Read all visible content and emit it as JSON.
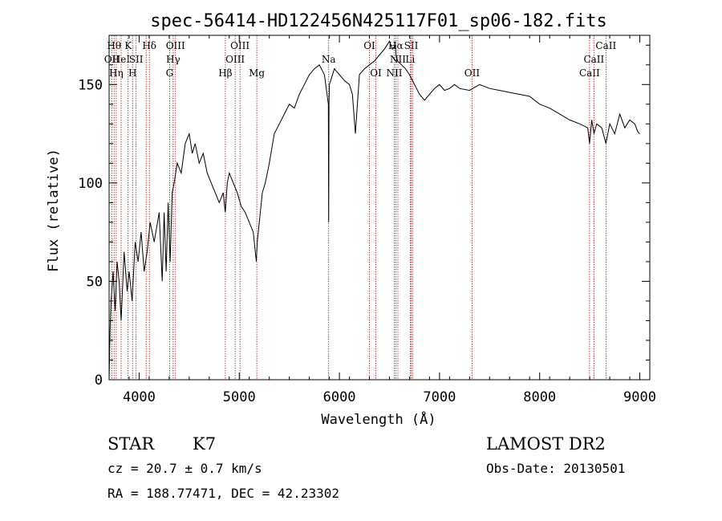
{
  "chart_data": {
    "type": "line",
    "title": "spec-56414-HD122456N425117F01_sp06-182.fits",
    "xlabel": "Wavelength (Å)",
    "ylabel": "Flux (relative)",
    "xlim": [
      3700,
      9100
    ],
    "ylim": [
      0,
      175
    ],
    "xticks": [
      4000,
      5000,
      6000,
      7000,
      8000,
      9000
    ],
    "yticks": [
      0,
      50,
      100,
      150
    ],
    "grid": false,
    "series": [
      {
        "x": [
          3700,
          3710,
          3720,
          3740,
          3760,
          3780,
          3800,
          3820,
          3850,
          3880,
          3900,
          3930,
          3960,
          3990,
          4020,
          4050,
          4080,
          4110,
          4150,
          4200,
          4230,
          4250,
          4270,
          4290,
          4310,
          4330,
          4350,
          4380,
          4420,
          4460,
          4500,
          4530,
          4560,
          4600,
          4640,
          4680,
          4720,
          4760,
          4800,
          4840,
          4860,
          4880,
          4900,
          4940,
          4980,
          5020,
          5060,
          5100,
          5140,
          5170,
          5180,
          5200,
          5230,
          5260,
          5300,
          5350,
          5400,
          5450,
          5500,
          5550,
          5600,
          5650,
          5700,
          5750,
          5800,
          5850,
          5890,
          5893,
          5896,
          5900,
          5950,
          6000,
          6050,
          6100,
          6130,
          6160,
          6200,
          6250,
          6300,
          6350,
          6400,
          6450,
          6500,
          6530,
          6560,
          6565,
          6580,
          6620,
          6660,
          6700,
          6750,
          6800,
          6850,
          6900,
          6950,
          7000,
          7050,
          7100,
          7150,
          7200,
          7300,
          7400,
          7500,
          7600,
          7700,
          7800,
          7900,
          8000,
          8100,
          8200,
          8300,
          8400,
          8480,
          8498,
          8520,
          8542,
          8570,
          8620,
          8662,
          8700,
          8750,
          8800,
          8850,
          8900,
          8950,
          8980,
          9000
        ],
        "y": [
          0,
          25,
          40,
          55,
          35,
          60,
          50,
          30,
          65,
          45,
          55,
          40,
          70,
          60,
          75,
          55,
          65,
          80,
          70,
          85,
          50,
          85,
          55,
          90,
          60,
          95,
          100,
          110,
          105,
          120,
          125,
          115,
          120,
          110,
          115,
          105,
          100,
          95,
          90,
          95,
          85,
          100,
          105,
          100,
          95,
          88,
          85,
          80,
          75,
          60,
          70,
          80,
          95,
          100,
          110,
          125,
          130,
          135,
          140,
          138,
          145,
          150,
          155,
          158,
          160,
          155,
          140,
          80,
          140,
          150,
          158,
          155,
          152,
          150,
          145,
          125,
          155,
          158,
          160,
          162,
          165,
          168,
          172,
          168,
          170,
          165,
          162,
          160,
          158,
          155,
          150,
          145,
          142,
          145,
          148,
          150,
          147,
          148,
          150,
          148,
          147,
          150,
          148,
          147,
          146,
          145,
          144,
          140,
          138,
          135,
          132,
          130,
          128,
          120,
          132,
          125,
          130,
          128,
          120,
          130,
          125,
          135,
          128,
          132,
          130,
          126,
          125
        ]
      }
    ],
    "line_markers": [
      {
        "x": 3727,
        "label": "OII",
        "row": 2
      },
      {
        "x": 3750,
        "label": "Hθ",
        "row": 1
      },
      {
        "x": 3771,
        "label": "Hη",
        "row": 3
      },
      {
        "x": 3820,
        "label": "HeI",
        "row": 2
      },
      {
        "x": 3890,
        "label": "K",
        "row": 1
      },
      {
        "x": 3934,
        "label": "H",
        "row": 3
      },
      {
        "x": 3970,
        "label": "SII",
        "row": 2
      },
      {
        "x": 4102,
        "label": "Hδ",
        "row": 1
      },
      {
        "x": 4070,
        "label": "",
        "row": 0
      },
      {
        "x": 4304,
        "label": "G",
        "row": 3
      },
      {
        "x": 4340,
        "label": "Hγ",
        "row": 2
      },
      {
        "x": 4363,
        "label": "OIII",
        "row": 1
      },
      {
        "x": 4861,
        "label": "Hβ",
        "row": 3
      },
      {
        "x": 4959,
        "label": "OIII",
        "row": 2
      },
      {
        "x": 5007,
        "label": "OIII",
        "row": 1
      },
      {
        "x": 5175,
        "label": "Mg",
        "row": 3
      },
      {
        "x": 5893,
        "label": "Na",
        "row": 2
      },
      {
        "x": 6300,
        "label": "OI",
        "row": 1
      },
      {
        "x": 6364,
        "label": "OI",
        "row": 3
      },
      {
        "x": 6548,
        "label": "NII",
        "row": 3
      },
      {
        "x": 6563,
        "label": "Hα",
        "row": 1
      },
      {
        "x": 6584,
        "label": "NII",
        "row": 2
      },
      {
        "x": 6707,
        "label": "Li",
        "row": 2
      },
      {
        "x": 6717,
        "label": "SII",
        "row": 1
      },
      {
        "x": 6731,
        "label": "",
        "row": 0
      },
      {
        "x": 7325,
        "label": "OII",
        "row": 3
      },
      {
        "x": 8498,
        "label": "CaII",
        "row": 3
      },
      {
        "x": 8542,
        "label": "CaII",
        "row": 2
      },
      {
        "x": 8662,
        "label": "CaII",
        "row": 1
      }
    ]
  },
  "info": {
    "object_type": "STAR",
    "subclass": "K7",
    "survey": "LAMOST DR2",
    "cz_line": "cz = 20.7 ± 0.7 km/s",
    "obs_date": "Obs-Date: 20130501",
    "coords": "RA = 188.77471, DEC =  42.23302"
  }
}
